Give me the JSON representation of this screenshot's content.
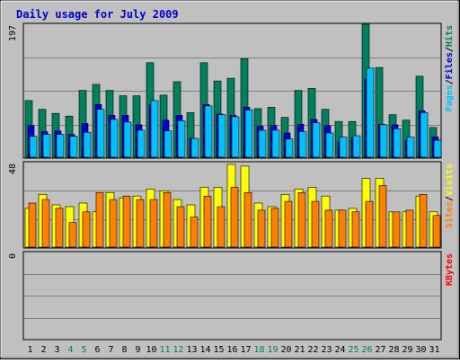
{
  "title": "Daily usage for July 2009",
  "colors": {
    "background": "#c0c0c0",
    "hits": "#00805c",
    "files": "#0000d8",
    "pages": "#00c0ff",
    "visits": "#ffff00",
    "sites": "#ff8000",
    "kbytes": "#ff0000",
    "title": "#0000cc",
    "day_normal": "#000000",
    "day_weekend": "#00805c"
  },
  "chart_data": [
    {
      "type": "bar",
      "panel": "top",
      "y_max_label": "197",
      "ylim": [
        0,
        197
      ],
      "right_labels": [
        {
          "text": "Pages",
          "color": "#00c0ff"
        },
        {
          "text": "/",
          "color": "#000000"
        },
        {
          "text": "Files",
          "color": "#0000d8"
        },
        {
          "text": "/",
          "color": "#000000"
        },
        {
          "text": "Hits",
          "color": "#00805c"
        }
      ],
      "series": [
        {
          "name": "Hits",
          "values": [
            84,
            71,
            65,
            61,
            99,
            108,
            99,
            91,
            91,
            140,
            92,
            112,
            66,
            140,
            113,
            117,
            146,
            72,
            74,
            59,
            99,
            102,
            71,
            53,
            53,
            197,
            133,
            63,
            55,
            120,
            44
          ]
        },
        {
          "name": "Files",
          "values": [
            47,
            38,
            39,
            34,
            50,
            78,
            62,
            62,
            48,
            78,
            55,
            62,
            28,
            78,
            64,
            62,
            74,
            46,
            47,
            36,
            49,
            56,
            47,
            23,
            29,
            116,
            49,
            48,
            25,
            69,
            30
          ]
        },
        {
          "name": "Pages",
          "values": [
            31,
            34,
            34,
            31,
            37,
            71,
            56,
            52,
            40,
            84,
            39,
            54,
            28,
            76,
            63,
            60,
            70,
            40,
            40,
            27,
            38,
            51,
            36,
            30,
            32,
            132,
            48,
            42,
            30,
            66,
            25
          ]
        }
      ]
    },
    {
      "type": "bar",
      "panel": "middle",
      "y_max_label": "48",
      "ylim": [
        0,
        48
      ],
      "right_labels": [
        {
          "text": "Sites",
          "color": "#ff8000"
        },
        {
          "text": "/",
          "color": "#000000"
        },
        {
          "text": "Visits",
          "color": "#ffff00"
        }
      ],
      "series": [
        {
          "name": "Visits",
          "values": [
            22,
            30,
            24,
            23,
            25,
            20,
            31,
            28,
            29,
            33,
            32,
            27,
            24,
            34,
            34,
            47,
            46,
            25,
            23,
            30,
            33,
            34,
            29,
            21,
            22,
            39,
            39,
            20,
            20,
            29,
            20
          ]
        },
        {
          "name": "Sites",
          "values": [
            25,
            27,
            22,
            14,
            20,
            31,
            27,
            29,
            27,
            27,
            31,
            23,
            17,
            29,
            23,
            34,
            31,
            21,
            22,
            26,
            31,
            26,
            21,
            21,
            20,
            26,
            35,
            20,
            21,
            30,
            18
          ]
        }
      ]
    },
    {
      "type": "bar",
      "panel": "bottom",
      "y_max_label": "0",
      "ylim": [
        0,
        1
      ],
      "right_labels": [
        {
          "text": "KBytes",
          "color": "#ff0000"
        }
      ],
      "series": [
        {
          "name": "KBytes",
          "values": [
            0,
            0,
            0,
            0,
            0,
            0,
            0,
            0,
            0,
            0,
            0,
            0,
            0,
            0,
            0,
            0,
            0,
            0,
            0,
            0,
            0,
            0,
            0,
            0,
            0,
            0,
            0,
            0,
            0,
            0,
            0
          ]
        }
      ]
    }
  ],
  "days": [
    "1",
    "2",
    "3",
    "4",
    "5",
    "6",
    "7",
    "8",
    "9",
    "10",
    "11",
    "12",
    "13",
    "14",
    "15",
    "16",
    "17",
    "18",
    "19",
    "20",
    "21",
    "22",
    "23",
    "24",
    "25",
    "26",
    "27",
    "28",
    "29",
    "30",
    "31"
  ],
  "weekend_days": [
    4,
    5,
    11,
    12,
    18,
    19,
    25,
    26
  ]
}
